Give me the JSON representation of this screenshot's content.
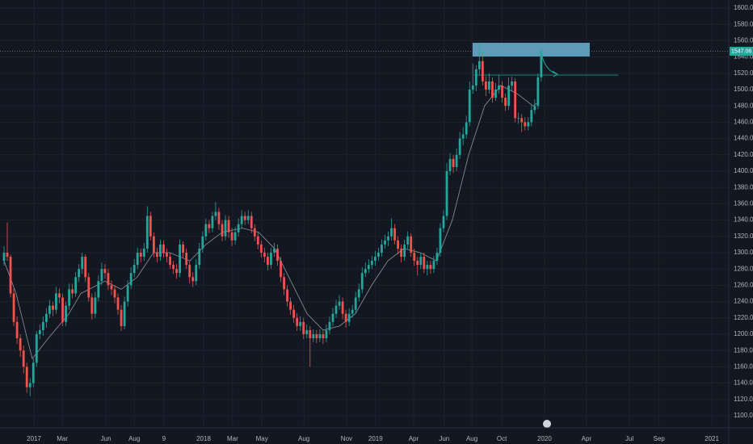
{
  "chart_data": {
    "type": "candlestick",
    "up_color": "#26a69a",
    "down_color": "#ef5350",
    "xlim": [
      -1.24,
      222.6
    ],
    "ylim": [
      1085.1,
      1609.9
    ],
    "xticks": [
      {
        "value": 9.2,
        "label": "2017"
      },
      {
        "value": 17.9,
        "label": "Mar"
      },
      {
        "value": 31.3,
        "label": "Jun"
      },
      {
        "value": 40,
        "label": "Aug"
      },
      {
        "value": 49.1,
        "label": "9"
      },
      {
        "value": 61.3,
        "label": "2018"
      },
      {
        "value": 70.2,
        "label": "Mar"
      },
      {
        "value": 79.2,
        "label": "May"
      },
      {
        "value": 92.1,
        "label": "Aug"
      },
      {
        "value": 105.2,
        "label": "Nov"
      },
      {
        "value": 114.1,
        "label": "2019"
      },
      {
        "value": 125.8,
        "label": "Apr"
      },
      {
        "value": 135.2,
        "label": "Jun"
      },
      {
        "value": 143.7,
        "label": "Aug"
      },
      {
        "value": 152.9,
        "label": "Oct"
      },
      {
        "value": 166,
        "label": "2020"
      },
      {
        "value": 178.9,
        "label": "Apr"
      },
      {
        "value": 192.1,
        "label": "Jul"
      },
      {
        "value": 201.2,
        "label": "Sep"
      },
      {
        "value": 217.4,
        "label": "2021"
      }
    ],
    "yticks": [
      {
        "value": 1100,
        "label": "1100.00"
      },
      {
        "value": 1120,
        "label": "1120.00"
      },
      {
        "value": 1140,
        "label": "1140.00"
      },
      {
        "value": 1160,
        "label": "1160.00"
      },
      {
        "value": 1180,
        "label": "1180.00"
      },
      {
        "value": 1200,
        "label": "1200.00"
      },
      {
        "value": 1220,
        "label": "1220.00"
      },
      {
        "value": 1240,
        "label": "1240.00"
      },
      {
        "value": 1260,
        "label": "1260.00"
      },
      {
        "value": 1280,
        "label": "1280.00"
      },
      {
        "value": 1300,
        "label": "1300.00"
      },
      {
        "value": 1320,
        "label": "1320.00"
      },
      {
        "value": 1340,
        "label": "1340.00"
      },
      {
        "value": 1360,
        "label": "1360.00"
      },
      {
        "value": 1380,
        "label": "1380.00"
      },
      {
        "value": 1400,
        "label": "1400.00"
      },
      {
        "value": 1420,
        "label": "1420.00"
      },
      {
        "value": 1440,
        "label": "1440.00"
      },
      {
        "value": 1460,
        "label": "1460.00"
      },
      {
        "value": 1480,
        "label": "1480.00"
      },
      {
        "value": 1500,
        "label": "1500.00"
      },
      {
        "value": 1520,
        "label": "1520.00"
      },
      {
        "value": 1540,
        "label": "1540.00"
      },
      {
        "value": 1560,
        "label": "1560.00"
      },
      {
        "value": 1580,
        "label": "1580.00"
      },
      {
        "value": 1600,
        "label": "1600.00"
      }
    ],
    "grid": true,
    "ohlc": [
      [
        1290,
        1308,
        1284,
        1300
      ],
      [
        1300,
        1337,
        1290,
        1295
      ],
      [
        1295,
        1298,
        1245,
        1250
      ],
      [
        1250,
        1256,
        1210,
        1215
      ],
      [
        1215,
        1222,
        1188,
        1195
      ],
      [
        1195,
        1200,
        1172,
        1180
      ],
      [
        1180,
        1186,
        1152,
        1160
      ],
      [
        1160,
        1165,
        1128,
        1135
      ],
      [
        1135,
        1146,
        1124,
        1140
      ],
      [
        1140,
        1170,
        1135,
        1165
      ],
      [
        1165,
        1204,
        1160,
        1200
      ],
      [
        1200,
        1212,
        1194,
        1205
      ],
      [
        1205,
        1222,
        1198,
        1215
      ],
      [
        1215,
        1232,
        1208,
        1225
      ],
      [
        1225,
        1242,
        1220,
        1235
      ],
      [
        1235,
        1240,
        1222,
        1230
      ],
      [
        1230,
        1258,
        1225,
        1250
      ],
      [
        1250,
        1256,
        1238,
        1245
      ],
      [
        1245,
        1250,
        1210,
        1215
      ],
      [
        1215,
        1240,
        1210,
        1235
      ],
      [
        1235,
        1262,
        1230,
        1255
      ],
      [
        1255,
        1262,
        1244,
        1250
      ],
      [
        1250,
        1276,
        1246,
        1270
      ],
      [
        1270,
        1286,
        1264,
        1280
      ],
      [
        1280,
        1300,
        1274,
        1295
      ],
      [
        1295,
        1298,
        1264,
        1270
      ],
      [
        1270,
        1275,
        1240,
        1245
      ],
      [
        1245,
        1250,
        1218,
        1225
      ],
      [
        1225,
        1252,
        1220,
        1245
      ],
      [
        1245,
        1272,
        1240,
        1265
      ],
      [
        1265,
        1288,
        1260,
        1280
      ],
      [
        1280,
        1286,
        1268,
        1275
      ],
      [
        1275,
        1280,
        1254,
        1260
      ],
      [
        1260,
        1266,
        1248,
        1255
      ],
      [
        1255,
        1260,
        1238,
        1245
      ],
      [
        1245,
        1250,
        1224,
        1230
      ],
      [
        1230,
        1236,
        1204,
        1210
      ],
      [
        1210,
        1246,
        1206,
        1240
      ],
      [
        1240,
        1266,
        1234,
        1260
      ],
      [
        1260,
        1282,
        1255,
        1275
      ],
      [
        1275,
        1292,
        1270,
        1285
      ],
      [
        1285,
        1306,
        1280,
        1300
      ],
      [
        1300,
        1305,
        1288,
        1295
      ],
      [
        1295,
        1312,
        1290,
        1305
      ],
      [
        1305,
        1357,
        1300,
        1345
      ],
      [
        1345,
        1350,
        1315,
        1320
      ],
      [
        1320,
        1325,
        1294,
        1300
      ],
      [
        1300,
        1306,
        1288,
        1295
      ],
      [
        1295,
        1316,
        1290,
        1310
      ],
      [
        1310,
        1315,
        1294,
        1300
      ],
      [
        1300,
        1305,
        1288,
        1295
      ],
      [
        1295,
        1300,
        1280,
        1285
      ],
      [
        1285,
        1290,
        1274,
        1280
      ],
      [
        1280,
        1286,
        1268,
        1275
      ],
      [
        1275,
        1316,
        1270,
        1310
      ],
      [
        1310,
        1314,
        1294,
        1300
      ],
      [
        1300,
        1305,
        1280,
        1285
      ],
      [
        1285,
        1290,
        1262,
        1270
      ],
      [
        1270,
        1276,
        1258,
        1265
      ],
      [
        1265,
        1292,
        1260,
        1285
      ],
      [
        1285,
        1312,
        1280,
        1305
      ],
      [
        1305,
        1326,
        1300,
        1320
      ],
      [
        1320,
        1342,
        1315,
        1335
      ],
      [
        1335,
        1340,
        1324,
        1330
      ],
      [
        1330,
        1350,
        1325,
        1345
      ],
      [
        1345,
        1362,
        1340,
        1350
      ],
      [
        1350,
        1355,
        1328,
        1335
      ],
      [
        1335,
        1340,
        1314,
        1320
      ],
      [
        1320,
        1346,
        1315,
        1340
      ],
      [
        1340,
        1345,
        1318,
        1325
      ],
      [
        1325,
        1330,
        1308,
        1315
      ],
      [
        1315,
        1332,
        1310,
        1325
      ],
      [
        1325,
        1342,
        1320,
        1335
      ],
      [
        1335,
        1352,
        1330,
        1345
      ],
      [
        1345,
        1350,
        1334,
        1340
      ],
      [
        1340,
        1352,
        1335,
        1345
      ],
      [
        1345,
        1350,
        1324,
        1330
      ],
      [
        1330,
        1335,
        1314,
        1320
      ],
      [
        1320,
        1325,
        1304,
        1310
      ],
      [
        1310,
        1315,
        1294,
        1300
      ],
      [
        1300,
        1306,
        1288,
        1295
      ],
      [
        1295,
        1300,
        1278,
        1285
      ],
      [
        1285,
        1306,
        1280,
        1300
      ],
      [
        1300,
        1312,
        1295,
        1305
      ],
      [
        1305,
        1310,
        1284,
        1290
      ],
      [
        1290,
        1295,
        1264,
        1270
      ],
      [
        1270,
        1275,
        1248,
        1255
      ],
      [
        1255,
        1260,
        1234,
        1240
      ],
      [
        1240,
        1245,
        1224,
        1230
      ],
      [
        1230,
        1236,
        1214,
        1220
      ],
      [
        1220,
        1226,
        1204,
        1210
      ],
      [
        1210,
        1222,
        1204,
        1215
      ],
      [
        1215,
        1220,
        1194,
        1200
      ],
      [
        1200,
        1212,
        1195,
        1205
      ],
      [
        1205,
        1210,
        1160,
        1195
      ],
      [
        1195,
        1206,
        1190,
        1200
      ],
      [
        1200,
        1205,
        1189,
        1195
      ],
      [
        1195,
        1206,
        1190,
        1200
      ],
      [
        1200,
        1205,
        1188,
        1195
      ],
      [
        1195,
        1212,
        1190,
        1205
      ],
      [
        1205,
        1222,
        1200,
        1215
      ],
      [
        1215,
        1232,
        1210,
        1225
      ],
      [
        1225,
        1242,
        1220,
        1235
      ],
      [
        1235,
        1248,
        1230,
        1240
      ],
      [
        1240,
        1245,
        1218,
        1225
      ],
      [
        1225,
        1230,
        1208,
        1215
      ],
      [
        1215,
        1232,
        1210,
        1225
      ],
      [
        1225,
        1236,
        1220,
        1230
      ],
      [
        1230,
        1252,
        1225,
        1245
      ],
      [
        1245,
        1262,
        1240,
        1255
      ],
      [
        1255,
        1282,
        1250,
        1275
      ],
      [
        1275,
        1288,
        1270,
        1280
      ],
      [
        1280,
        1292,
        1275,
        1285
      ],
      [
        1285,
        1296,
        1280,
        1290
      ],
      [
        1290,
        1302,
        1284,
        1295
      ],
      [
        1295,
        1306,
        1290,
        1300
      ],
      [
        1300,
        1316,
        1295,
        1310
      ],
      [
        1310,
        1322,
        1305,
        1315
      ],
      [
        1315,
        1326,
        1308,
        1320
      ],
      [
        1320,
        1342,
        1315,
        1330
      ],
      [
        1330,
        1335,
        1310,
        1315
      ],
      [
        1315,
        1320,
        1298,
        1305
      ],
      [
        1305,
        1310,
        1288,
        1295
      ],
      [
        1295,
        1316,
        1290,
        1310
      ],
      [
        1310,
        1326,
        1305,
        1320
      ],
      [
        1320,
        1324,
        1295,
        1300
      ],
      [
        1300,
        1305,
        1284,
        1290
      ],
      [
        1290,
        1295,
        1272,
        1285
      ],
      [
        1285,
        1300,
        1280,
        1295
      ],
      [
        1295,
        1300,
        1275,
        1280
      ],
      [
        1280,
        1290,
        1272,
        1285
      ],
      [
        1285,
        1290,
        1274,
        1280
      ],
      [
        1280,
        1296,
        1275,
        1290
      ],
      [
        1290,
        1306,
        1285,
        1300
      ],
      [
        1300,
        1336,
        1295,
        1330
      ],
      [
        1330,
        1352,
        1325,
        1345
      ],
      [
        1345,
        1410,
        1340,
        1400
      ],
      [
        1400,
        1422,
        1395,
        1415
      ],
      [
        1415,
        1420,
        1398,
        1405
      ],
      [
        1405,
        1428,
        1400,
        1420
      ],
      [
        1420,
        1448,
        1415,
        1440
      ],
      [
        1440,
        1454,
        1432,
        1445
      ],
      [
        1445,
        1468,
        1440,
        1460
      ],
      [
        1460,
        1510,
        1455,
        1500
      ],
      [
        1500,
        1532,
        1495,
        1505
      ],
      [
        1505,
        1530,
        1498,
        1525
      ],
      [
        1525,
        1557,
        1518,
        1535
      ],
      [
        1535,
        1545,
        1505,
        1510
      ],
      [
        1510,
        1516,
        1492,
        1500
      ],
      [
        1500,
        1520,
        1495,
        1510
      ],
      [
        1510,
        1515,
        1484,
        1490
      ],
      [
        1490,
        1508,
        1486,
        1500
      ],
      [
        1500,
        1518,
        1495,
        1505
      ],
      [
        1505,
        1510,
        1484,
        1490
      ],
      [
        1490,
        1495,
        1474,
        1480
      ],
      [
        1480,
        1515,
        1475,
        1505
      ],
      [
        1505,
        1516,
        1498,
        1510
      ],
      [
        1510,
        1514,
        1460,
        1465
      ],
      [
        1465,
        1472,
        1458,
        1465
      ],
      [
        1465,
        1470,
        1448,
        1460
      ],
      [
        1460,
        1466,
        1450,
        1455
      ],
      [
        1455,
        1466,
        1450,
        1460
      ],
      [
        1460,
        1482,
        1455,
        1475
      ],
      [
        1475,
        1488,
        1470,
        1480
      ],
      [
        1480,
        1520,
        1476,
        1515
      ],
      [
        1515,
        1550,
        1510,
        1547.06
      ]
    ],
    "ma": {
      "color": "#8f939e",
      "x": [
        0,
        3.7,
        7.4,
        8.7,
        13.6,
        19.9,
        23.6,
        31,
        36,
        40.9,
        45.9,
        50.9,
        57.1,
        62,
        67,
        73.2,
        78.2,
        83.1,
        88.1,
        93.1,
        98,
        103,
        107.9,
        112.9,
        117.9,
        122.8,
        127.8,
        132.8,
        137.7,
        142.7,
        147.6,
        152.6,
        157.6,
        162.5,
        164.3
      ],
      "values": [
        1290,
        1250,
        1190,
        1170,
        1195,
        1225,
        1250,
        1265,
        1255,
        1270,
        1300,
        1300,
        1290,
        1310,
        1325,
        1330,
        1325,
        1305,
        1265,
        1225,
        1205,
        1210,
        1225,
        1260,
        1290,
        1305,
        1300,
        1290,
        1340,
        1420,
        1480,
        1505,
        1495,
        1480,
        1485
      ]
    },
    "last_price": {
      "value": 1547.06,
      "color": "#26a69a"
    },
    "zone": {
      "x": [
        143.9,
        179.9
      ],
      "y": [
        1540.6,
        1557.4
      ],
      "color": "#6bb3d3"
    },
    "level": {
      "x": [
        144.4,
        188.6
      ],
      "value": 1517.8,
      "color": "#26a69a"
    }
  }
}
